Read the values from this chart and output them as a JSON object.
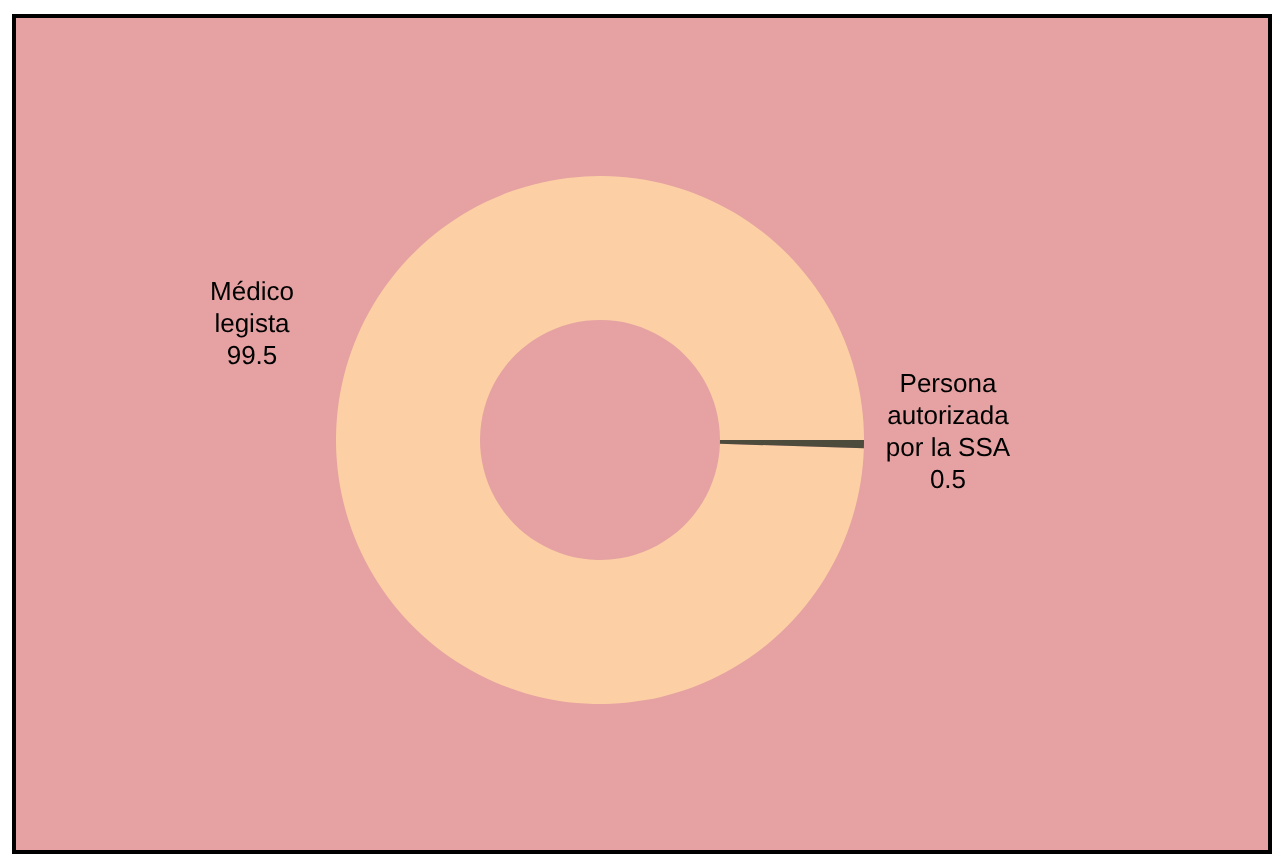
{
  "chart_data": {
    "type": "donut",
    "categories": [
      "Médico legista",
      "Persona autorizada por la SSA"
    ],
    "values": [
      99.5,
      0.5
    ],
    "colors": [
      "#fcd0a4",
      "#4d4b3c"
    ],
    "data_labels": true
  }
}
